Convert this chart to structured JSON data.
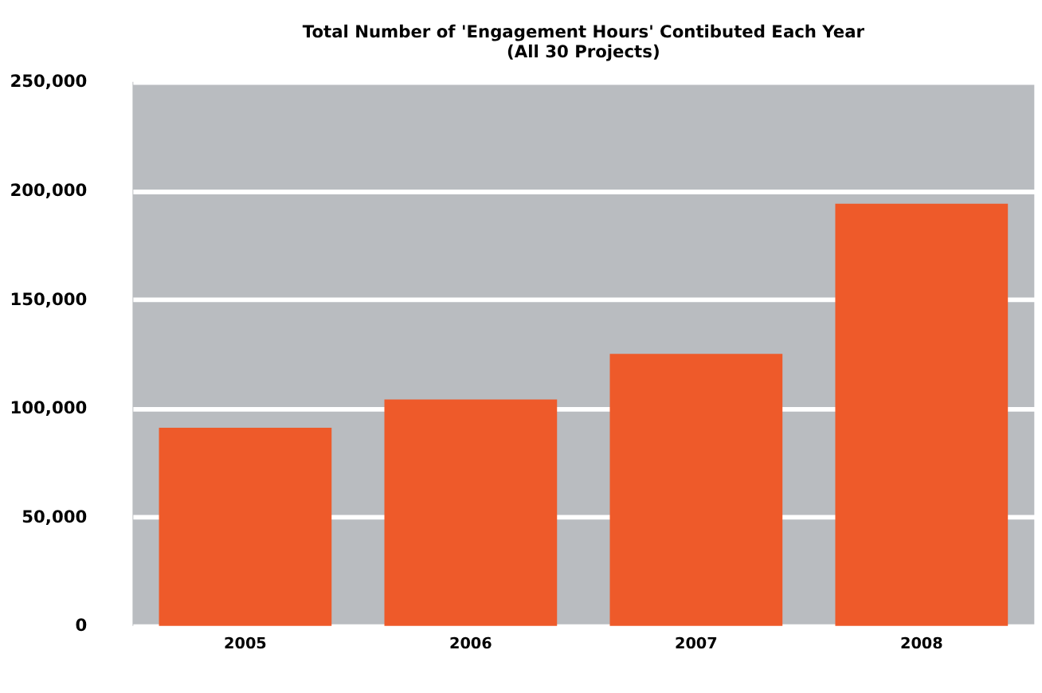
{
  "chart_data": {
    "type": "bar",
    "title": [
      "Total Number of 'Engagement Hours' Contibuted Each Year",
      "(All 30 Projects)"
    ],
    "categories": [
      "2005",
      "2006",
      "2007",
      "2008"
    ],
    "values": [
      91000,
      104000,
      125000,
      194000
    ],
    "color": "#ee5a2a",
    "ylim": [
      0,
      250000
    ],
    "yticks": [
      0,
      {
        "value": 50000,
        "label": "50,000"
      },
      {
        "value": 100000,
        "label": "100,000"
      },
      {
        "value": 150000,
        "label": "150,000"
      },
      {
        "value": 200000,
        "label": "200,000"
      },
      {
        "value": 250000,
        "label": "250,000"
      }
    ],
    "grid": "y"
  }
}
